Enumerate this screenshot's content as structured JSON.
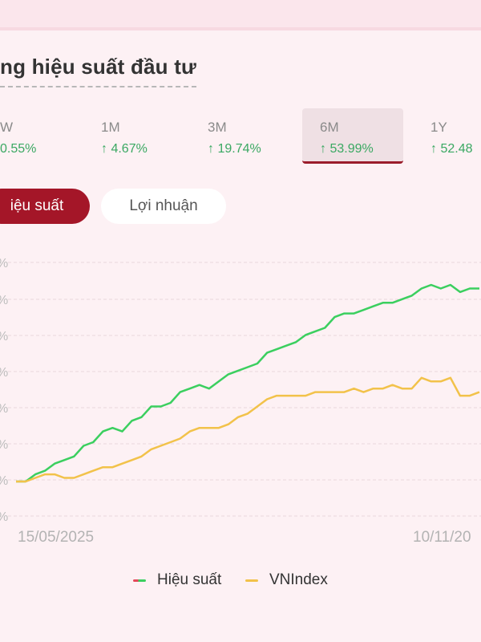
{
  "header": {
    "title": "ng hiệu suất đầu tư"
  },
  "periods": [
    {
      "label": "W",
      "value": "0.55%",
      "arrow": "↑",
      "active": false
    },
    {
      "label": "1M",
      "value": "4.67%",
      "arrow": "↑",
      "active": false
    },
    {
      "label": "3M",
      "value": "19.74%",
      "arrow": "↑",
      "active": false
    },
    {
      "label": "6M",
      "value": "53.99%",
      "arrow": "↑",
      "active": true
    },
    {
      "label": "1Y",
      "value": "52.48",
      "arrow": "↑",
      "active": false
    }
  ],
  "toggles": {
    "performance": "iệu suất",
    "profit": "Lợi nhuận"
  },
  "colors": {
    "accent": "#a41628",
    "green": "#3bcf5f",
    "yellow": "#f2c24a",
    "gain_text": "#3aa862"
  },
  "chart_data": {
    "type": "line",
    "x_labels": [
      "15/05/2025",
      "10/11/20"
    ],
    "y_tick_labels": [
      "%",
      "%",
      "%",
      "%",
      "%",
      "%",
      "%",
      "%"
    ],
    "grid": true,
    "series": [
      {
        "name": "Hiệu suất",
        "color": "#3bcf5f",
        "values": [
          0,
          0,
          2,
          3,
          5,
          6,
          7,
          10,
          11,
          14,
          15,
          14,
          17,
          18,
          21,
          21,
          22,
          25,
          26,
          27,
          26,
          28,
          30,
          31,
          32,
          33,
          36,
          37,
          38,
          39,
          41,
          42,
          43,
          46,
          47,
          47,
          48,
          49,
          50,
          50,
          51,
          52,
          54,
          55,
          54,
          55,
          53,
          54,
          54
        ]
      },
      {
        "name": "VNIndex",
        "color": "#f2c24a",
        "values": [
          0,
          0,
          1,
          2,
          2,
          1,
          1,
          2,
          3,
          4,
          4,
          5,
          6,
          7,
          9,
          10,
          11,
          12,
          14,
          15,
          15,
          15,
          16,
          18,
          19,
          21,
          23,
          24,
          24,
          24,
          24,
          25,
          25,
          25,
          25,
          26,
          25,
          26,
          26,
          27,
          26,
          26,
          29,
          28,
          28,
          29,
          24,
          24,
          25
        ]
      }
    ],
    "legend": "bottom-center"
  }
}
